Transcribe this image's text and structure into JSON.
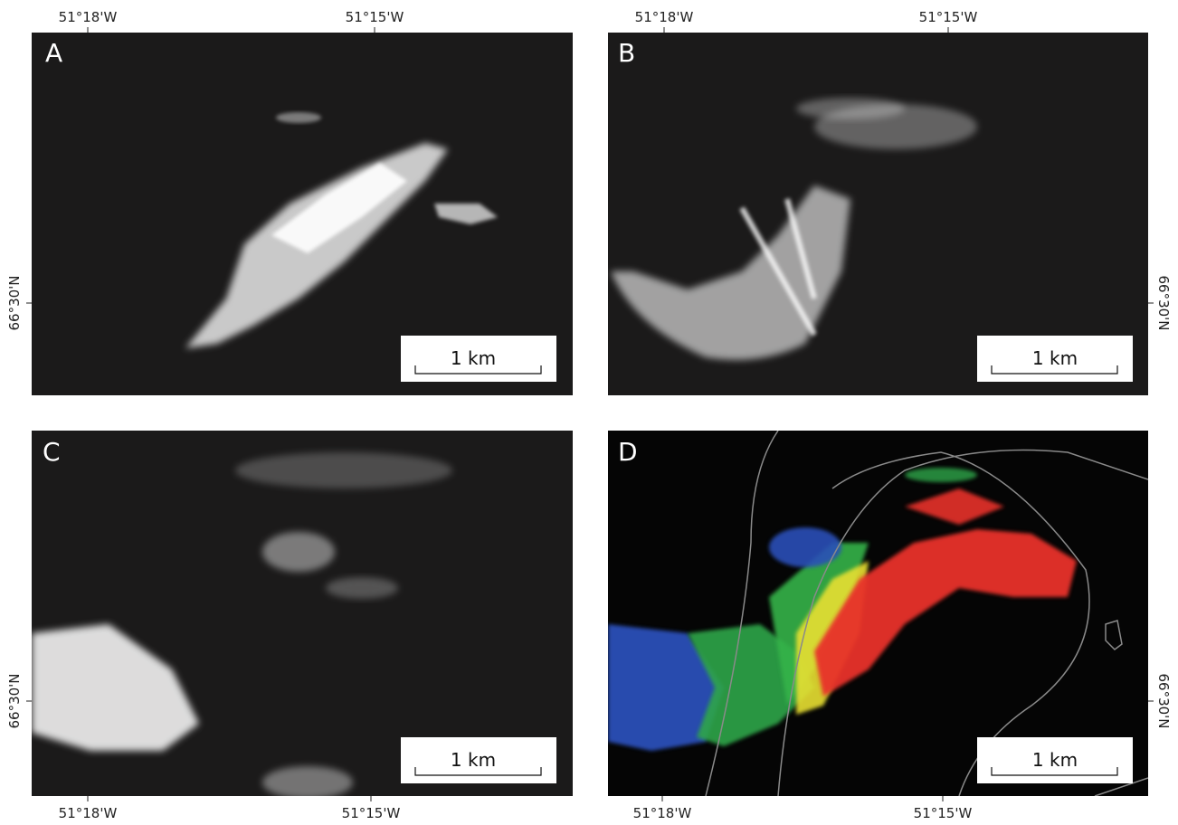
{
  "panels": [
    {
      "label": "A",
      "scale_bar": "1 km",
      "longitude_labels": [
        "51°18'W",
        "51°15'W"
      ],
      "latitude_label": "66°30'N"
    },
    {
      "label": "B",
      "scale_bar": "1 km",
      "longitude_labels": [
        "51°18'W",
        "51°15'W"
      ],
      "latitude_label": "66°30'N"
    },
    {
      "label": "C",
      "scale_bar": "1 km",
      "longitude_labels": [
        "51°18'W",
        "51°15'W"
      ],
      "latitude_label": "66°30'N"
    },
    {
      "label": "D",
      "scale_bar": "1 km",
      "longitude_labels": [
        "51°18'W",
        "51°15'W"
      ],
      "latitude_label": "66°30'N"
    }
  ]
}
